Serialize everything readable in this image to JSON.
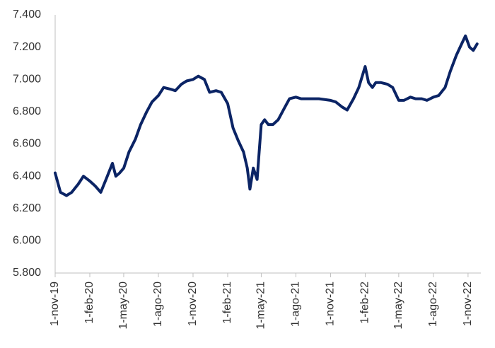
{
  "chart_data": {
    "type": "line",
    "x": [
      "2019-11-01",
      "2019-11-15",
      "2019-12-01",
      "2019-12-15",
      "2020-01-01",
      "2020-01-15",
      "2020-02-01",
      "2020-02-15",
      "2020-03-01",
      "2020-03-15",
      "2020-04-01",
      "2020-04-10",
      "2020-04-20",
      "2020-05-01",
      "2020-05-15",
      "2020-06-01",
      "2020-06-15",
      "2020-07-01",
      "2020-07-15",
      "2020-08-01",
      "2020-08-15",
      "2020-09-01",
      "2020-09-15",
      "2020-10-01",
      "2020-10-15",
      "2020-11-01",
      "2020-11-15",
      "2020-12-01",
      "2020-12-15",
      "2021-01-01",
      "2021-01-15",
      "2021-02-01",
      "2021-02-15",
      "2021-03-01",
      "2021-03-15",
      "2021-03-25",
      "2021-04-01",
      "2021-04-10",
      "2021-04-20",
      "2021-05-01",
      "2021-05-10",
      "2021-05-20",
      "2021-06-01",
      "2021-06-15",
      "2021-07-01",
      "2021-07-15",
      "2021-08-01",
      "2021-08-15",
      "2021-09-01",
      "2021-10-01",
      "2021-11-01",
      "2021-11-15",
      "2021-12-01",
      "2021-12-15",
      "2022-01-01",
      "2022-01-15",
      "2022-02-01",
      "2022-02-10",
      "2022-02-20",
      "2022-03-01",
      "2022-03-15",
      "2022-04-01",
      "2022-04-15",
      "2022-05-01",
      "2022-05-15",
      "2022-06-01",
      "2022-06-15",
      "2022-07-01",
      "2022-07-15",
      "2022-08-01",
      "2022-08-15",
      "2022-09-01",
      "2022-09-15",
      "2022-10-01",
      "2022-10-15",
      "2022-10-25",
      "2022-11-05",
      "2022-11-15",
      "2022-11-25"
    ],
    "values": [
      6.42,
      6.3,
      6.28,
      6.3,
      6.35,
      6.4,
      6.37,
      6.34,
      6.3,
      6.38,
      6.48,
      6.4,
      6.42,
      6.45,
      6.55,
      6.63,
      6.72,
      6.8,
      6.86,
      6.9,
      6.95,
      6.94,
      6.93,
      6.97,
      6.99,
      7.0,
      7.02,
      7.0,
      6.92,
      6.93,
      6.92,
      6.85,
      6.7,
      6.62,
      6.55,
      6.45,
      6.32,
      6.45,
      6.38,
      6.72,
      6.75,
      6.72,
      6.72,
      6.75,
      6.82,
      6.88,
      6.89,
      6.88,
      6.88,
      6.88,
      6.87,
      6.86,
      6.83,
      6.81,
      6.88,
      6.95,
      7.08,
      6.98,
      6.95,
      6.98,
      6.98,
      6.97,
      6.95,
      6.87,
      6.87,
      6.89,
      6.88,
      6.88,
      6.87,
      6.89,
      6.9,
      6.95,
      7.05,
      7.15,
      7.22,
      7.27,
      7.2,
      7.18,
      7.22
    ],
    "color": "#0b2465",
    "xlim": [
      "2019-11-01",
      "2022-12-05"
    ],
    "xticks": [
      {
        "value": "2019-11-01",
        "label": "1-nov-19"
      },
      {
        "value": "2020-02-01",
        "label": "1-feb-20"
      },
      {
        "value": "2020-05-01",
        "label": "1-may-20"
      },
      {
        "value": "2020-08-01",
        "label": "1-ago-20"
      },
      {
        "value": "2020-11-01",
        "label": "1-nov-20"
      },
      {
        "value": "2021-02-01",
        "label": "1-feb-21"
      },
      {
        "value": "2021-05-01",
        "label": "1-may-21"
      },
      {
        "value": "2021-08-01",
        "label": "1-ago-21"
      },
      {
        "value": "2021-11-01",
        "label": "1-nov-21"
      },
      {
        "value": "2022-02-01",
        "label": "1-feb-22"
      },
      {
        "value": "2022-05-01",
        "label": "1-may-22"
      },
      {
        "value": "2022-08-01",
        "label": "1-ago-22"
      },
      {
        "value": "2022-11-01",
        "label": "1-nov-22"
      }
    ],
    "ylim": [
      5.8,
      7.4
    ],
    "yticks": [
      {
        "value": 5.8,
        "label": "5.800"
      },
      {
        "value": 6.0,
        "label": "6.000"
      },
      {
        "value": 6.2,
        "label": "6.200"
      },
      {
        "value": 6.4,
        "label": "6.400"
      },
      {
        "value": 6.6,
        "label": "6.600"
      },
      {
        "value": 6.8,
        "label": "6.800"
      },
      {
        "value": 7.0,
        "label": "7.000"
      },
      {
        "value": 7.2,
        "label": "7.200"
      },
      {
        "value": 7.4,
        "label": "7.400"
      }
    ],
    "grid": false
  }
}
